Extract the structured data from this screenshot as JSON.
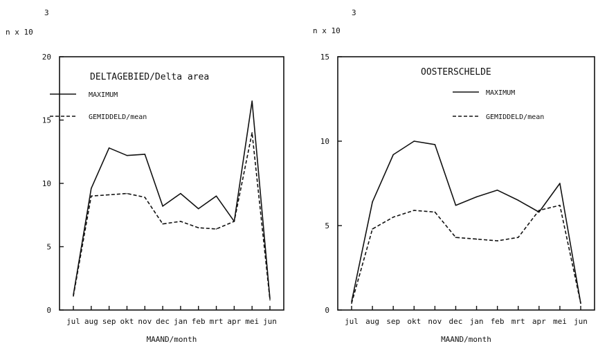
{
  "chart_data": [
    {
      "type": "line",
      "title": "DELTAGEBIED/Delta area",
      "xlabel": "MAAND/month",
      "ylabel": "n x 10",
      "ylabel_exponent": "3",
      "categories": [
        "jul",
        "aug",
        "sep",
        "okt",
        "nov",
        "dec",
        "jan",
        "feb",
        "mrt",
        "apr",
        "mei",
        "jun"
      ],
      "ylim": [
        0,
        20
      ],
      "yticks": [
        "0",
        "5",
        "10",
        "15",
        "20"
      ],
      "legend_position": "top-left",
      "grid": false,
      "series": [
        {
          "name": "MAXIMUM",
          "style": "solid",
          "values": [
            1.2,
            9.6,
            12.8,
            12.2,
            12.3,
            8.2,
            9.2,
            8.0,
            9.0,
            7.0,
            16.5,
            0.9
          ]
        },
        {
          "name": "GEMIDDELD/mean",
          "style": "dashed",
          "values": [
            1.1,
            9.0,
            9.1,
            9.2,
            8.9,
            6.8,
            7.0,
            6.5,
            6.4,
            7.0,
            14.0,
            0.8
          ]
        }
      ]
    },
    {
      "type": "line",
      "title": "OOSTERSCHELDE",
      "xlabel": "MAAND/month",
      "ylabel": "n x 10",
      "ylabel_exponent": "3",
      "categories": [
        "jul",
        "aug",
        "sep",
        "okt",
        "nov",
        "dec",
        "jan",
        "feb",
        "mrt",
        "apr",
        "mei",
        "jun"
      ],
      "ylim": [
        0,
        15
      ],
      "yticks": [
        "0",
        "5",
        "10",
        "15"
      ],
      "legend_position": "top-right",
      "grid": false,
      "series": [
        {
          "name": "MAXIMUM",
          "style": "solid",
          "values": [
            0.5,
            6.4,
            9.2,
            10.0,
            9.8,
            6.2,
            6.7,
            7.1,
            6.5,
            5.8,
            7.5,
            0.4
          ]
        },
        {
          "name": "GEMIDDELD/mean",
          "style": "dashed",
          "values": [
            0.4,
            4.8,
            5.5,
            5.9,
            5.8,
            4.3,
            4.2,
            4.1,
            4.3,
            5.9,
            6.2,
            0.4
          ]
        }
      ]
    }
  ]
}
